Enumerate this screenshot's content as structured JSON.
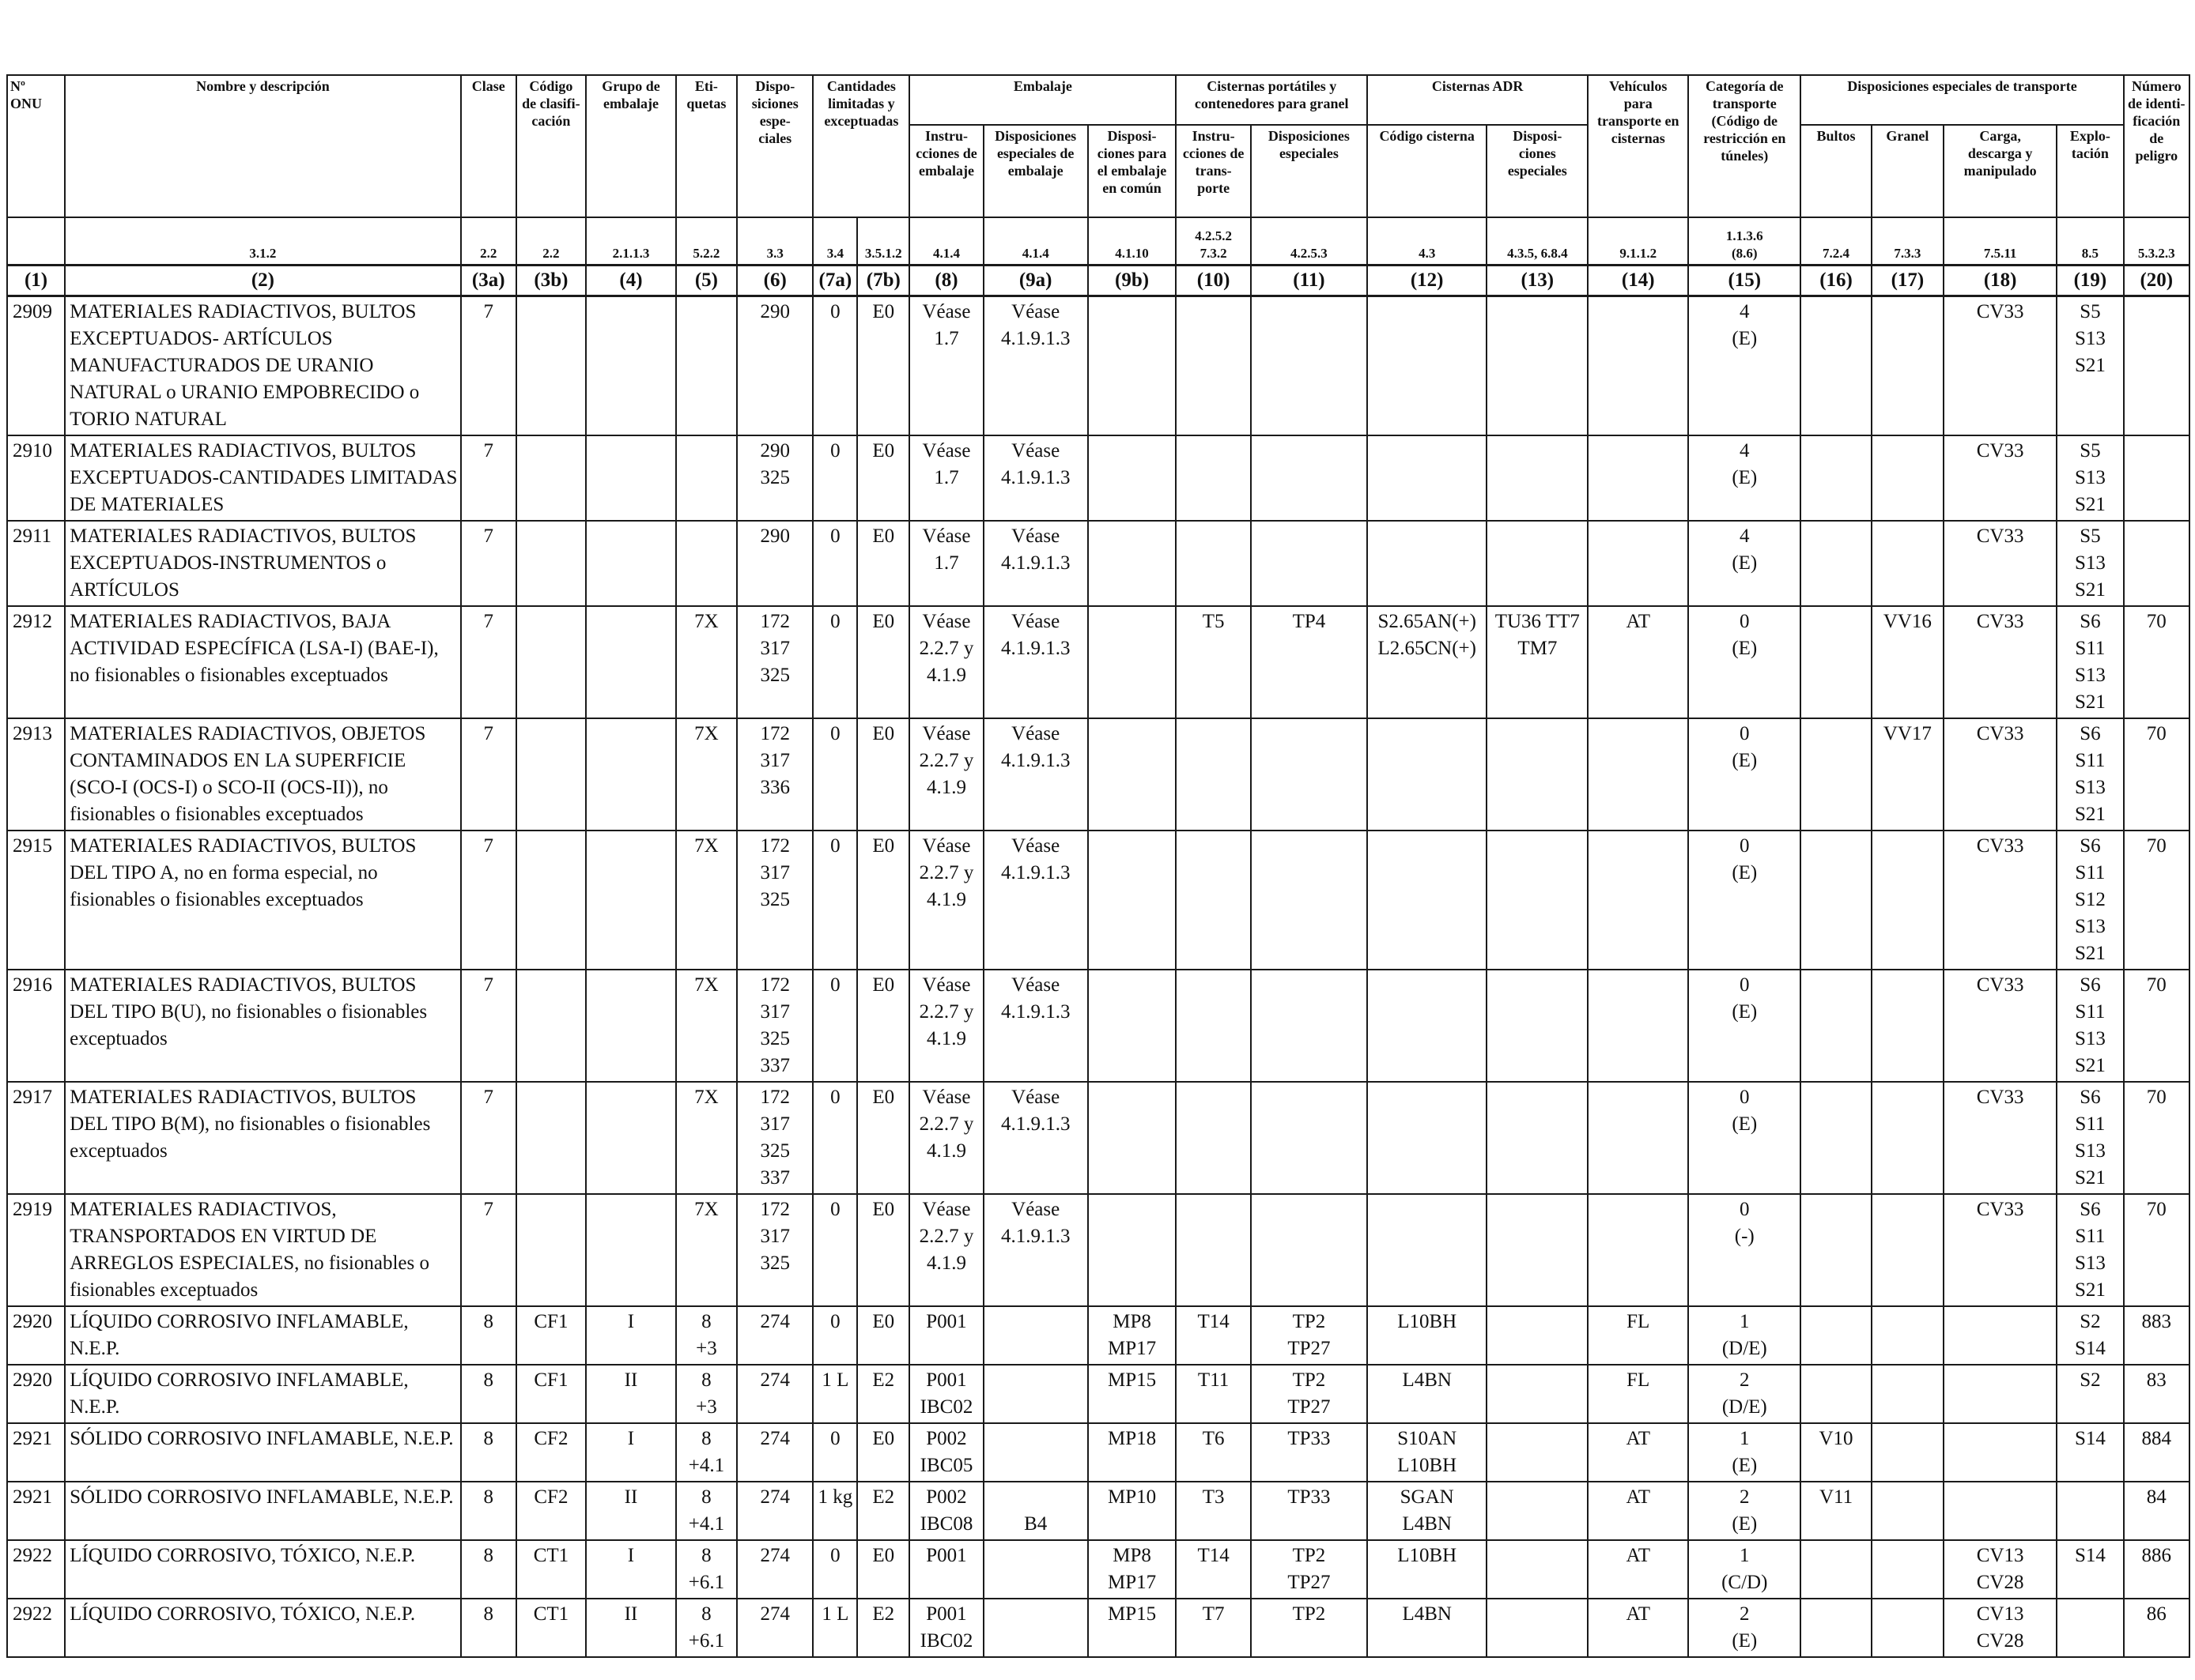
{
  "header": {
    "un": "Nº\nONU",
    "name": "Nombre y descripción",
    "class": "Clase",
    "code": "Código\nde clasifi-\ncación",
    "pg": "Grupo de\nembalaje",
    "labels": "Eti-\nquetas",
    "sp": "Dispo-\nsiciones\nespe-\nciales",
    "lq_group": "Cantidades\nlimitadas y\nexceptuadas",
    "pack_group": "Embalaje",
    "pack_instr": "Instru-\ncciones de\nembalaje",
    "pack_special": "Disposiciones\nespeciales de\nembalaje",
    "pack_mixed": "Disposi-\nciones para\nel embalaje\nen común",
    "portable_group": "Cisternas portátiles y\ncontenedores para granel",
    "portable_instr": "Instru-\ncciones de\ntrans-\nporte",
    "portable_special": "Disposiciones\nespeciales",
    "adr_group": "Cisternas ADR",
    "tank_code": "Código cisterna",
    "tank_special": "Disposi-\nciones\nespeciales",
    "vehicle": "Vehículos\npara\ntransporte en\ncisternas",
    "category": "Categoría de\ntransporte\n(Código de\nrestricción en\ntúneles)",
    "carriage_group": "Disposiciones especiales de transporte",
    "packages": "Bultos",
    "bulk": "Granel",
    "loading": "Carga,\ndescarga y\nmanipulado",
    "operation": "Explo-\ntación",
    "hazard_id": "Número\nde identi-\nficación\nde peligro"
  },
  "refs": [
    "",
    "3.1.2",
    "2.2",
    "2.2",
    "2.1.1.3",
    "5.2.2",
    "3.3",
    "3.4",
    "3.5.1.2",
    "4.1.4",
    "4.1.4",
    "4.1.10",
    "4.2.5.2\n7.3.2",
    "4.2.5.3",
    "4.3",
    "4.3.5, 6.8.4",
    "9.1.1.2",
    "1.1.3.6\n(8.6)",
    "7.2.4",
    "7.3.3",
    "7.5.11",
    "8.5",
    "5.3.2.3"
  ],
  "colnums": [
    "(1)",
    "(2)",
    "(3a)",
    "(3b)",
    "(4)",
    "(5)",
    "(6)",
    "(7a)",
    "(7b)",
    "(8)",
    "(9a)",
    "(9b)",
    "(10)",
    "(11)",
    "(12)",
    "(13)",
    "(14)",
    "(15)",
    "(16)",
    "(17)",
    "(18)",
    "(19)",
    "(20)"
  ],
  "rows": [
    {
      "un": "2909",
      "name": "MATERIALES RADIACTIVOS, BULTOS EXCEPTUADOS- ARTÍCULOS MANUFACTURADOS DE URANIO NATURAL o URANIO EMPOBRECIDO o TORIO NATURAL",
      "cls": "7",
      "code": "",
      "pg": "",
      "labels": "",
      "sp": "290",
      "lq": "0",
      "eq": "E0",
      "pi": "Véase\n1.7",
      "pps": "Véase\n4.1.9.1.3",
      "mp": "",
      "tpi": "",
      "tps": "",
      "tank": "",
      "tsp": "",
      "veh": "",
      "cat": "4\n(E)",
      "pkg": "",
      "bulk": "",
      "load": "CV33",
      "op": "S5\nS13\nS21",
      "hin": ""
    },
    {
      "un": "2910",
      "name": "MATERIALES RADIACTIVOS, BULTOS EXCEPTUADOS-CANTIDADES LIMITADAS DE MATERIALES",
      "cls": "7",
      "code": "",
      "pg": "",
      "labels": "",
      "sp": "290\n325",
      "lq": "0",
      "eq": "E0",
      "pi": "Véase\n1.7",
      "pps": "Véase\n4.1.9.1.3",
      "mp": "",
      "tpi": "",
      "tps": "",
      "tank": "",
      "tsp": "",
      "veh": "",
      "cat": "4\n(E)",
      "pkg": "",
      "bulk": "",
      "load": "CV33",
      "op": "S5\nS13\nS21",
      "hin": ""
    },
    {
      "un": "2911",
      "name": "MATERIALES RADIACTIVOS, BULTOS EXCEPTUADOS-INSTRUMENTOS o ARTÍCULOS",
      "cls": "7",
      "code": "",
      "pg": "",
      "labels": "",
      "sp": "290",
      "lq": "0",
      "eq": "E0",
      "pi": "Véase\n1.7",
      "pps": "Véase\n4.1.9.1.3",
      "mp": "",
      "tpi": "",
      "tps": "",
      "tank": "",
      "tsp": "",
      "veh": "",
      "cat": "4\n(E)",
      "pkg": "",
      "bulk": "",
      "load": "CV33",
      "op": "S5\nS13\nS21",
      "hin": ""
    },
    {
      "un": "2912",
      "name": "MATERIALES RADIACTIVOS, BAJA ACTIVIDAD ESPECÍFICA (LSA-I) (BAE-I), no fisionables o fisionables exceptuados",
      "cls": "7",
      "code": "",
      "pg": "",
      "labels": "7X",
      "sp": "172\n317\n325",
      "lq": "0",
      "eq": "E0",
      "pi": "Véase\n2.2.7 y\n4.1.9",
      "pps": "Véase\n4.1.9.1.3",
      "mp": "",
      "tpi": "T5",
      "tps": "TP4",
      "tank": "S2.65AN(+)\nL2.65CN(+)",
      "tsp": "TU36 TT7\nTM7",
      "veh": "AT",
      "cat": "0\n(E)",
      "pkg": "",
      "bulk": "VV16",
      "load": "CV33",
      "op": "S6\nS11\nS13\nS21",
      "hin": "70"
    },
    {
      "un": "2913",
      "name": "MATERIALES RADIACTIVOS, OBJETOS CONTAMINADOS EN LA SUPERFICIE (SCO-I (OCS-I) o SCO-II (OCS-II)), no fisionables o fisionables exceptuados",
      "cls": "7",
      "code": "",
      "pg": "",
      "labels": "7X",
      "sp": "172\n317\n336",
      "lq": "0",
      "eq": "E0",
      "pi": "Véase\n2.2.7 y\n4.1.9",
      "pps": "Véase\n4.1.9.1.3",
      "mp": "",
      "tpi": "",
      "tps": "",
      "tank": "",
      "tsp": "",
      "veh": "",
      "cat": "0\n(E)",
      "pkg": "",
      "bulk": "VV17",
      "load": "CV33",
      "op": "S6\nS11\nS13\nS21",
      "hin": "70"
    },
    {
      "un": "2915",
      "name": "MATERIALES RADIACTIVOS, BULTOS DEL TIPO A, no en forma especial, no fisionables o fisionables exceptuados",
      "cls": "7",
      "code": "",
      "pg": "",
      "labels": "7X",
      "sp": "172\n317\n325",
      "lq": "0",
      "eq": "E0",
      "pi": "Véase\n2.2.7 y\n4.1.9",
      "pps": "Véase\n4.1.9.1.3",
      "mp": "",
      "tpi": "",
      "tps": "",
      "tank": "",
      "tsp": "",
      "veh": "",
      "cat": "0\n(E)",
      "pkg": "",
      "bulk": "",
      "load": "CV33",
      "op": "S6\nS11\nS12\nS13\nS21",
      "hin": "70"
    },
    {
      "un": "2916",
      "name": "MATERIALES RADIACTIVOS, BULTOS DEL TIPO B(U), no fisionables o fisionables exceptuados",
      "cls": "7",
      "code": "",
      "pg": "",
      "labels": "7X",
      "sp": "172\n317\n325\n337",
      "lq": "0",
      "eq": "E0",
      "pi": "Véase\n2.2.7 y\n4.1.9",
      "pps": "Véase\n4.1.9.1.3",
      "mp": "",
      "tpi": "",
      "tps": "",
      "tank": "",
      "tsp": "",
      "veh": "",
      "cat": "0\n(E)",
      "pkg": "",
      "bulk": "",
      "load": "CV33",
      "op": "S6\nS11\nS13\nS21",
      "hin": "70"
    },
    {
      "un": "2917",
      "name": "MATERIALES RADIACTIVOS, BULTOS DEL TIPO B(M), no fisionables o fisionables exceptuados",
      "cls": "7",
      "code": "",
      "pg": "",
      "labels": "7X",
      "sp": "172\n317\n325\n337",
      "lq": "0",
      "eq": "E0",
      "pi": "Véase\n2.2.7 y\n4.1.9",
      "pps": "Véase\n4.1.9.1.3",
      "mp": "",
      "tpi": "",
      "tps": "",
      "tank": "",
      "tsp": "",
      "veh": "",
      "cat": "0\n(E)",
      "pkg": "",
      "bulk": "",
      "load": "CV33",
      "op": "S6\nS11\nS13\nS21",
      "hin": "70"
    },
    {
      "un": "2919",
      "name": "MATERIALES RADIACTIVOS, TRANSPORTADOS EN VIRTUD DE ARREGLOS ESPECIALES, no fisionables o fisionables exceptuados",
      "cls": "7",
      "code": "",
      "pg": "",
      "labels": "7X",
      "sp": "172\n317\n325",
      "lq": "0",
      "eq": "E0",
      "pi": "Véase\n2.2.7 y\n4.1.9",
      "pps": "Véase\n4.1.9.1.3",
      "mp": "",
      "tpi": "",
      "tps": "",
      "tank": "",
      "tsp": "",
      "veh": "",
      "cat": "0\n(-)",
      "pkg": "",
      "bulk": "",
      "load": "CV33",
      "op": "S6\nS11\nS13\nS21",
      "hin": "70"
    },
    {
      "un": "2920",
      "name": "LÍQUIDO CORROSIVO INFLAMABLE, N.E.P.",
      "cls": "8",
      "code": "CF1",
      "pg": "I",
      "labels": "8\n+3",
      "sp": "274",
      "lq": "0",
      "eq": "E0",
      "pi": "P001",
      "pps": "",
      "mp": "MP8\nMP17",
      "tpi": "T14",
      "tps": "TP2\nTP27",
      "tank": "L10BH",
      "tsp": "",
      "veh": "FL",
      "cat": "1\n(D/E)",
      "pkg": "",
      "bulk": "",
      "load": "",
      "op": "S2\nS14",
      "hin": "883"
    },
    {
      "un": "2920",
      "name": "LÍQUIDO CORROSIVO INFLAMABLE, N.E.P.",
      "cls": "8",
      "code": "CF1",
      "pg": "II",
      "labels": "8\n+3",
      "sp": "274",
      "lq": "1 L",
      "eq": "E2",
      "pi": "P001\nIBC02",
      "pps": "",
      "mp": "MP15",
      "tpi": "T11",
      "tps": "TP2\nTP27",
      "tank": "L4BN",
      "tsp": "",
      "veh": "FL",
      "cat": "2\n(D/E)",
      "pkg": "",
      "bulk": "",
      "load": "",
      "op": "S2",
      "hin": "83"
    },
    {
      "un": "2921",
      "name": "SÓLIDO CORROSIVO INFLAMABLE, N.E.P.",
      "cls": "8",
      "code": "CF2",
      "pg": "I",
      "labels": "8\n+4.1",
      "sp": "274",
      "lq": "0",
      "eq": "E0",
      "pi": "P002\nIBC05",
      "pps": "",
      "mp": "MP18",
      "tpi": "T6",
      "tps": "TP33",
      "tank": "S10AN\nL10BH",
      "tsp": "",
      "veh": "AT",
      "cat": "1\n(E)",
      "pkg": "V10",
      "bulk": "",
      "load": "",
      "op": "S14",
      "hin": "884"
    },
    {
      "un": "2921",
      "name": "SÓLIDO CORROSIVO INFLAMABLE, N.E.P.",
      "cls": "8",
      "code": "CF2",
      "pg": "II",
      "labels": "8\n+4.1",
      "sp": "274",
      "lq": "1 kg",
      "eq": "E2",
      "pi": "P002\nIBC08",
      "pps": "\nB4",
      "mp": "MP10",
      "tpi": "T3",
      "tps": "TP33",
      "tank": "SGAN\nL4BN",
      "tsp": "",
      "veh": "AT",
      "cat": "2\n(E)",
      "pkg": "V11",
      "bulk": "",
      "load": "",
      "op": "",
      "hin": "84"
    },
    {
      "un": "2922",
      "name": "LÍQUIDO CORROSIVO, TÓXICO, N.E.P.",
      "cls": "8",
      "code": "CT1",
      "pg": "I",
      "labels": "8\n+6.1",
      "sp": "274",
      "lq": "0",
      "eq": "E0",
      "pi": "P001",
      "pps": "",
      "mp": "MP8\nMP17",
      "tpi": "T14",
      "tps": "TP2\nTP27",
      "tank": "L10BH",
      "tsp": "",
      "veh": "AT",
      "cat": "1\n(C/D)",
      "pkg": "",
      "bulk": "",
      "load": "CV13\nCV28",
      "op": "S14",
      "hin": "886"
    },
    {
      "un": "2922",
      "name": "LÍQUIDO CORROSIVO, TÓXICO, N.E.P.",
      "cls": "8",
      "code": "CT1",
      "pg": "II",
      "labels": "8\n+6.1",
      "sp": "274",
      "lq": "1 L",
      "eq": "E2",
      "pi": "P001\nIBC02",
      "pps": "",
      "mp": "MP15",
      "tpi": "T7",
      "tps": "TP2",
      "tank": "L4BN",
      "tsp": "",
      "veh": "AT",
      "cat": "2\n(E)",
      "pkg": "",
      "bulk": "",
      "load": "CV13\nCV28",
      "op": "",
      "hin": "86"
    }
  ]
}
